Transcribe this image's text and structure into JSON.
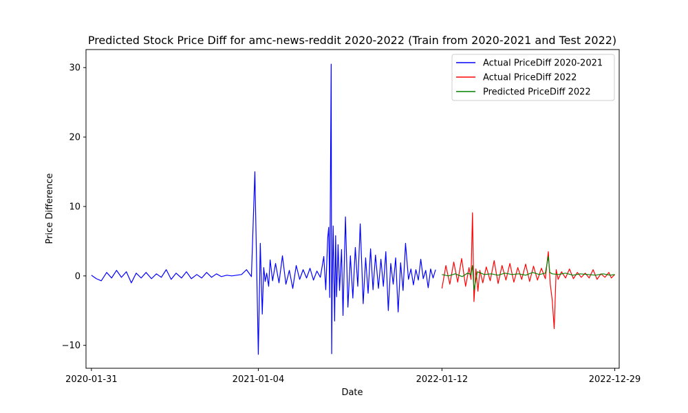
{
  "chart_data": {
    "type": "line",
    "title": "Predicted Stock Price Diff for amc-news-reddit 2020-2022 (Train from 2020-2021 and Test 2022)",
    "xlabel": "Date",
    "ylabel": "Price Difference",
    "x_tick_labels": [
      "2020-01-31",
      "2021-01-04",
      "2022-01-12",
      "2022-12-29"
    ],
    "x_ticks": [
      "2020-01-31",
      "2021-01-04",
      "2022-01-12",
      "2022-12-29"
    ],
    "xlim": [
      "2020-01-20",
      "2023-01-07"
    ],
    "y_ticks": [
      -10,
      0,
      10,
      20,
      30
    ],
    "ylim": [
      -13.3,
      32.6
    ],
    "grid": false,
    "legend_position": "top-right",
    "series": [
      {
        "name": "Actual PriceDiff 2020-2021",
        "color": "#0000ff",
        "x": [
          "2020-01-31",
          "2020-02-10",
          "2020-02-20",
          "2020-03-02",
          "2020-03-12",
          "2020-03-22",
          "2020-04-01",
          "2020-04-11",
          "2020-04-21",
          "2020-05-01",
          "2020-05-11",
          "2020-05-21",
          "2020-06-01",
          "2020-06-11",
          "2020-06-21",
          "2020-07-01",
          "2020-07-11",
          "2020-07-21",
          "2020-08-01",
          "2020-08-11",
          "2020-08-21",
          "2020-09-01",
          "2020-09-11",
          "2020-09-21",
          "2020-10-01",
          "2020-10-11",
          "2020-10-21",
          "2020-11-01",
          "2020-11-11",
          "2020-11-21",
          "2020-12-01",
          "2020-12-11",
          "2020-12-21",
          "2020-12-28",
          "2021-01-04",
          "2021-01-08",
          "2021-01-12",
          "2021-01-15",
          "2021-01-18",
          "2021-01-21",
          "2021-01-25",
          "2021-01-28",
          "2021-02-02",
          "2021-02-08",
          "2021-02-15",
          "2021-02-22",
          "2021-03-01",
          "2021-03-08",
          "2021-03-15",
          "2021-03-22",
          "2021-03-29",
          "2021-04-05",
          "2021-04-12",
          "2021-04-19",
          "2021-04-26",
          "2021-05-03",
          "2021-05-10",
          "2021-05-17",
          "2021-05-21",
          "2021-05-25",
          "2021-05-27",
          "2021-05-29",
          "2021-06-01",
          "2021-06-02",
          "2021-06-03",
          "2021-06-05",
          "2021-06-08",
          "2021-06-10",
          "2021-06-12",
          "2021-06-15",
          "2021-06-18",
          "2021-06-22",
          "2021-06-25",
          "2021-06-30",
          "2021-07-05",
          "2021-07-10",
          "2021-07-15",
          "2021-07-20",
          "2021-07-25",
          "2021-07-30",
          "2021-08-05",
          "2021-08-10",
          "2021-08-15",
          "2021-08-20",
          "2021-08-25",
          "2021-08-30",
          "2021-09-05",
          "2021-09-10",
          "2021-09-15",
          "2021-09-20",
          "2021-09-25",
          "2021-09-30",
          "2021-10-05",
          "2021-10-10",
          "2021-10-15",
          "2021-10-20",
          "2021-10-25",
          "2021-10-30",
          "2021-11-05",
          "2021-11-10",
          "2021-11-15",
          "2021-11-20",
          "2021-11-25",
          "2021-11-30",
          "2021-12-05",
          "2021-12-10",
          "2021-12-15",
          "2021-12-20",
          "2021-12-25",
          "2021-12-30"
        ],
        "values": [
          0.1,
          -0.4,
          -0.7,
          0.5,
          -0.3,
          0.8,
          -0.2,
          0.6,
          -1.0,
          0.4,
          -0.3,
          0.5,
          -0.4,
          0.3,
          -0.2,
          0.9,
          -0.5,
          0.4,
          -0.3,
          0.6,
          -0.4,
          0.2,
          -0.3,
          0.5,
          -0.2,
          0.3,
          -0.1,
          0.1,
          0.0,
          0.1,
          0.2,
          0.9,
          -0.1,
          15.0,
          -11.3,
          4.7,
          -5.5,
          1.2,
          -0.8,
          0.4,
          -1.5,
          2.3,
          -0.7,
          1.8,
          -1.0,
          2.9,
          -1.2,
          0.8,
          -1.8,
          1.5,
          -0.5,
          0.9,
          -0.3,
          1.1,
          -0.6,
          0.7,
          -0.2,
          2.8,
          -2.0,
          5.5,
          7.0,
          -3.1,
          30.5,
          -11.2,
          -2.5,
          7.2,
          -6.5,
          5.8,
          -3.0,
          4.5,
          -2.1,
          3.8,
          -5.7,
          8.5,
          -4.5,
          2.9,
          -3.2,
          4.1,
          -1.5,
          7.5,
          -4.0,
          2.6,
          -2.5,
          3.9,
          -2.0,
          3.0,
          -1.8,
          2.4,
          -1.5,
          3.5,
          -5.0,
          1.8,
          -1.2,
          2.6,
          -5.2,
          1.9,
          -2.1,
          4.7,
          -0.5,
          1.0,
          -1.3,
          0.9,
          -0.6,
          2.4,
          -0.4,
          0.8,
          -1.7,
          1.0,
          -0.3,
          0.9
        ]
      },
      {
        "name": "Actual PriceDiff 2022",
        "color": "#ff0000",
        "x": [
          "2022-01-12",
          "2022-01-20",
          "2022-01-28",
          "2022-02-05",
          "2022-02-13",
          "2022-02-21",
          "2022-03-01",
          "2022-03-08",
          "2022-03-12",
          "2022-03-15",
          "2022-03-18",
          "2022-03-22",
          "2022-03-26",
          "2022-03-30",
          "2022-04-05",
          "2022-04-12",
          "2022-04-20",
          "2022-04-28",
          "2022-05-06",
          "2022-05-14",
          "2022-05-22",
          "2022-05-30",
          "2022-06-07",
          "2022-06-15",
          "2022-06-23",
          "2022-07-01",
          "2022-07-09",
          "2022-07-17",
          "2022-07-25",
          "2022-08-02",
          "2022-08-10",
          "2022-08-16",
          "2022-08-20",
          "2022-08-24",
          "2022-08-28",
          "2022-09-01",
          "2022-09-05",
          "2022-09-12",
          "2022-09-20",
          "2022-09-28",
          "2022-10-06",
          "2022-10-14",
          "2022-10-22",
          "2022-10-30",
          "2022-11-07",
          "2022-11-15",
          "2022-11-23",
          "2022-12-01",
          "2022-12-09",
          "2022-12-17",
          "2022-12-22",
          "2022-12-29"
        ],
        "values": [
          -1.8,
          1.5,
          -1.2,
          2.0,
          -0.9,
          2.5,
          -1.5,
          1.2,
          -0.5,
          9.1,
          -3.7,
          1.0,
          -2.2,
          0.8,
          -1.0,
          1.3,
          -0.7,
          2.2,
          -1.1,
          1.5,
          -0.6,
          1.8,
          -0.9,
          1.2,
          -0.5,
          1.7,
          -0.8,
          1.4,
          -0.6,
          1.1,
          -0.4,
          3.5,
          -1.2,
          -3.5,
          -7.6,
          0.9,
          -0.5,
          0.6,
          -0.3,
          1.0,
          -0.4,
          0.5,
          -0.2,
          0.4,
          -0.3,
          0.9,
          -0.5,
          0.3,
          -0.2,
          0.5,
          -0.3,
          0.2
        ]
      },
      {
        "name": "Predicted PriceDiff 2022",
        "color": "#008000",
        "x": [
          "2022-01-12",
          "2022-01-25",
          "2022-02-08",
          "2022-02-22",
          "2022-03-05",
          "2022-03-12",
          "2022-03-15",
          "2022-03-18",
          "2022-03-25",
          "2022-04-08",
          "2022-04-22",
          "2022-05-06",
          "2022-05-20",
          "2022-06-03",
          "2022-06-17",
          "2022-07-01",
          "2022-07-15",
          "2022-07-29",
          "2022-08-10",
          "2022-08-16",
          "2022-08-19",
          "2022-08-24",
          "2022-09-05",
          "2022-09-20",
          "2022-10-05",
          "2022-10-20",
          "2022-11-05",
          "2022-11-20",
          "2022-12-05",
          "2022-12-20",
          "2022-12-29"
        ],
        "values": [
          0.2,
          0.0,
          0.3,
          -0.1,
          0.4,
          0.2,
          1.5,
          -2.0,
          0.6,
          0.2,
          0.3,
          0.1,
          0.4,
          0.2,
          0.3,
          0.1,
          0.5,
          0.2,
          0.4,
          2.8,
          0.5,
          0.3,
          0.2,
          0.4,
          0.1,
          0.3,
          0.2,
          0.1,
          0.3,
          0.1,
          0.2
        ]
      }
    ]
  }
}
